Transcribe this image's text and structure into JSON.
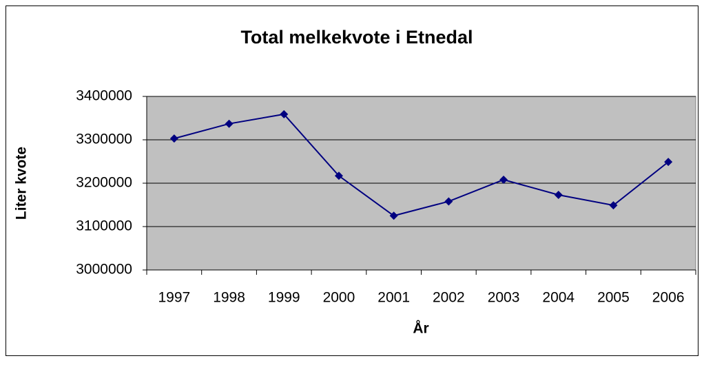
{
  "chart_data": {
    "type": "line",
    "title": "Total melkekvote i Etnedal",
    "x_label": "År",
    "y_label": "Liter kvote",
    "categories": [
      "1997",
      "1998",
      "1999",
      "2000",
      "2001",
      "2002",
      "2003",
      "2004",
      "2005",
      "2006"
    ],
    "values": [
      3303000,
      3337000,
      3359000,
      3217000,
      3125000,
      3158000,
      3208000,
      3173000,
      3149000,
      3249000
    ],
    "color": "#000080",
    "ylim": [
      3000000,
      3400000
    ],
    "yticks": [
      3000000,
      3100000,
      3200000,
      3300000,
      3400000
    ],
    "grid": true
  }
}
